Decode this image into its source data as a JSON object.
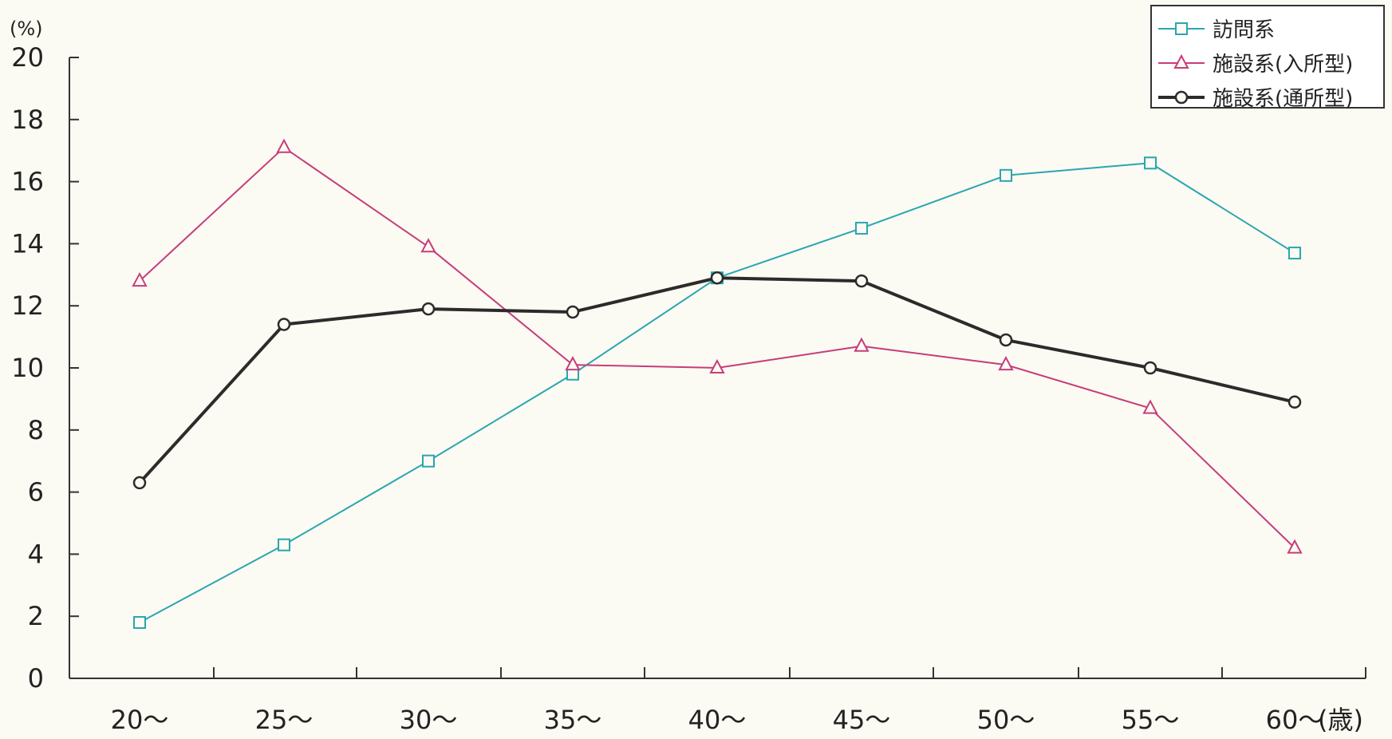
{
  "chart_data": {
    "type": "line",
    "y_unit": "(%)",
    "x_unit": "(歳)",
    "categories": [
      "20～",
      "25～",
      "30～",
      "35～",
      "40～",
      "45～",
      "50～",
      "55～",
      "60～"
    ],
    "ylim": [
      0,
      20
    ],
    "yticks": [
      0,
      2,
      4,
      6,
      8,
      10,
      12,
      14,
      16,
      18,
      20
    ],
    "grid": false,
    "legend_position": "top-right",
    "series": [
      {
        "name": "訪問系",
        "color": "#2aa6b0",
        "marker": "square",
        "values": [
          1.8,
          4.3,
          7.0,
          9.8,
          12.9,
          14.5,
          16.2,
          16.6,
          13.7
        ]
      },
      {
        "name": "施設系(入所型)",
        "color": "#c63d7a",
        "marker": "triangle",
        "values": [
          12.8,
          17.1,
          13.9,
          10.1,
          10.0,
          10.7,
          10.1,
          8.7,
          4.2
        ]
      },
      {
        "name": "施設系(通所型)",
        "color": "#2b2b2b",
        "marker": "circle",
        "values": [
          6.3,
          11.4,
          11.9,
          11.8,
          12.9,
          12.8,
          10.9,
          10.0,
          8.9
        ]
      }
    ]
  }
}
